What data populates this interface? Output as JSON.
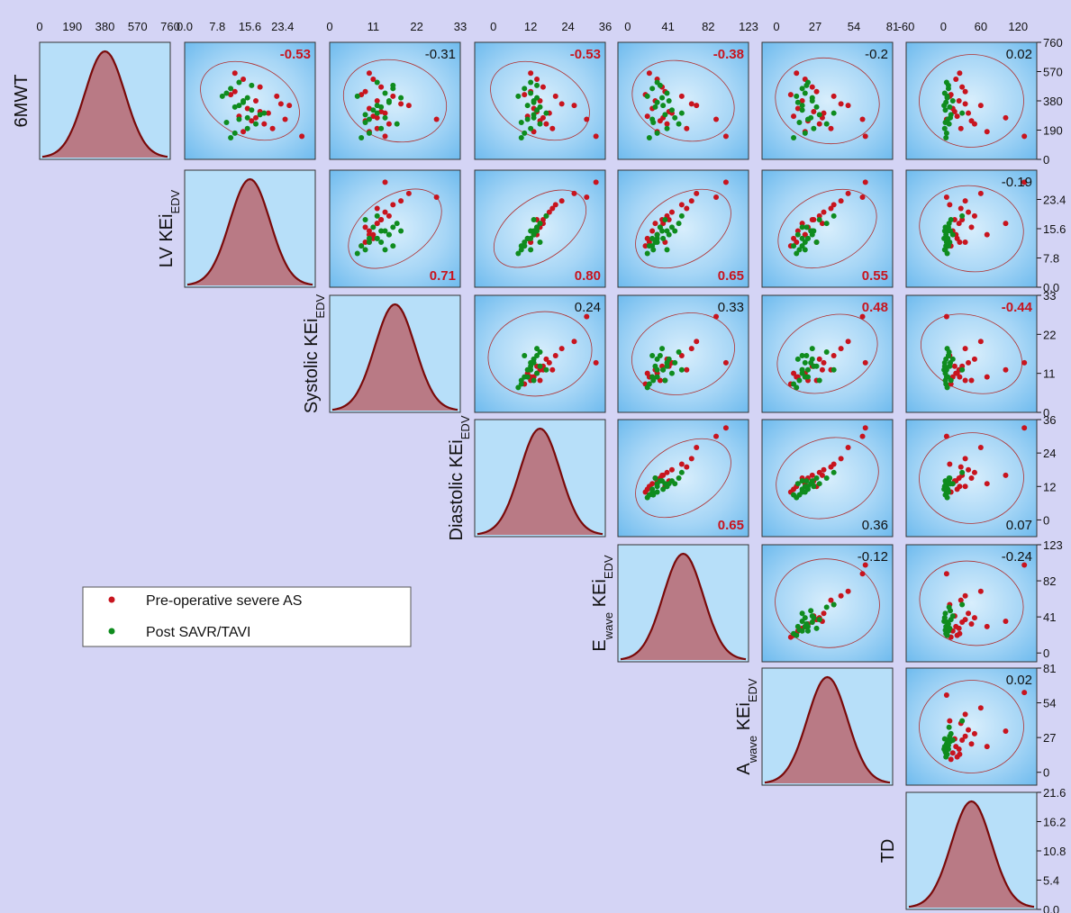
{
  "chart_data": {
    "type": "scatter",
    "title": "",
    "variables": [
      {
        "key": "6MWT",
        "label": "6MWT",
        "sub": "",
        "ticks": [
          "0",
          "190",
          "380",
          "570",
          "760"
        ],
        "range": [
          0,
          760
        ]
      },
      {
        "key": "LV",
        "label": "LV KEi",
        "sub": "EDV",
        "ticks": [
          "0.0",
          "7.8",
          "15.6",
          "23.4"
        ],
        "range": [
          0,
          31.2
        ]
      },
      {
        "key": "Systolic",
        "label": "Systolic KEi",
        "sub": "EDV",
        "ticks": [
          "0",
          "11",
          "22",
          "33"
        ],
        "range": [
          0,
          33
        ]
      },
      {
        "key": "Diastolic",
        "label": "Diastolic KEi",
        "sub": "EDV",
        "ticks": [
          "0",
          "12",
          "24",
          "36"
        ],
        "range": [
          -6,
          36
        ]
      },
      {
        "key": "Ewave",
        "label": "E",
        "sub": "wave",
        "label2": " KEi",
        "sub2": "EDV",
        "ticks": [
          "0",
          "41",
          "82",
          "123"
        ],
        "range": [
          -10,
          123
        ]
      },
      {
        "key": "Awave",
        "label": "A",
        "sub": "wave",
        "label2": " KEi",
        "sub2": "EDV",
        "ticks": [
          "0",
          "27",
          "54",
          "81"
        ],
        "range": [
          -10,
          81
        ]
      },
      {
        "key": "TD",
        "label": "TD",
        "sub": "",
        "ticks": [
          "-60",
          "0",
          "60",
          "120"
        ],
        "range": [
          -60,
          150
        ],
        "right_ticks": [
          "0.0",
          "5.4",
          "10.8",
          "16.2",
          "21.6"
        ],
        "right_range": [
          0,
          21.6
        ]
      }
    ],
    "correlations": [
      {
        "row": 0,
        "col": 1,
        "value": "-0.53",
        "highlight": true
      },
      {
        "row": 0,
        "col": 2,
        "value": "-0.31",
        "highlight": false
      },
      {
        "row": 0,
        "col": 3,
        "value": "-0.53",
        "highlight": true
      },
      {
        "row": 0,
        "col": 4,
        "value": "-0.38",
        "highlight": true
      },
      {
        "row": 0,
        "col": 5,
        "value": "-0.2",
        "highlight": false
      },
      {
        "row": 0,
        "col": 6,
        "value": "0.02",
        "highlight": false
      },
      {
        "row": 1,
        "col": 2,
        "value": "0.71",
        "highlight": true
      },
      {
        "row": 1,
        "col": 3,
        "value": "0.80",
        "highlight": true
      },
      {
        "row": 1,
        "col": 4,
        "value": "0.65",
        "highlight": true
      },
      {
        "row": 1,
        "col": 5,
        "value": "0.55",
        "highlight": true
      },
      {
        "row": 1,
        "col": 6,
        "value": "-0.19",
        "highlight": false
      },
      {
        "row": 2,
        "col": 3,
        "value": "0.24",
        "highlight": false
      },
      {
        "row": 2,
        "col": 4,
        "value": "0.33",
        "highlight": false
      },
      {
        "row": 2,
        "col": 5,
        "value": "0.48",
        "highlight": true
      },
      {
        "row": 2,
        "col": 6,
        "value": "-0.44",
        "highlight": true
      },
      {
        "row": 3,
        "col": 4,
        "value": "0.65",
        "highlight": true
      },
      {
        "row": 3,
        "col": 5,
        "value": "0.36",
        "highlight": false
      },
      {
        "row": 3,
        "col": 6,
        "value": "0.07",
        "highlight": false
      },
      {
        "row": 4,
        "col": 5,
        "value": "-0.12",
        "highlight": false
      },
      {
        "row": 4,
        "col": 6,
        "value": "-0.24",
        "highlight": false
      },
      {
        "row": 5,
        "col": 6,
        "value": "0.02",
        "highlight": false
      }
    ],
    "series": [
      {
        "name": "Pre-operative severe AS",
        "color": "#c8141e",
        "values": [
          [
            520,
            14,
            11,
            14,
            30,
            20,
            20
          ],
          [
            470,
            18,
            13,
            16,
            35,
            25,
            30
          ],
          [
            440,
            12,
            9,
            12,
            38,
            28,
            35
          ],
          [
            410,
            22,
            16,
            20,
            55,
            40,
            10
          ],
          [
            380,
            17,
            12,
            15,
            28,
            18,
            25
          ],
          [
            350,
            25,
            20,
            26,
            70,
            50,
            60
          ],
          [
            330,
            15,
            10,
            13,
            25,
            15,
            15
          ],
          [
            300,
            20,
            14,
            18,
            45,
            33,
            40
          ],
          [
            280,
            13,
            11,
            11,
            20,
            12,
            22
          ],
          [
            260,
            24,
            27,
            30,
            90,
            60,
            5
          ],
          [
            250,
            16,
            9,
            15,
            33,
            22,
            45
          ],
          [
            230,
            19,
            15,
            17,
            40,
            30,
            50
          ],
          [
            200,
            21,
            12,
            19,
            60,
            38,
            28
          ],
          [
            180,
            14,
            10,
            13,
            30,
            20,
            70
          ],
          [
            150,
            28,
            14,
            33,
            100,
            62,
            130
          ],
          [
            420,
            11,
            8,
            10,
            18,
            10,
            12
          ],
          [
            360,
            23,
            18,
            22,
            65,
            45,
            35
          ],
          [
            310,
            18,
            13,
            14,
            42,
            26,
            18
          ],
          [
            560,
            12,
            10,
            12,
            22,
            14,
            26
          ],
          [
            270,
            17,
            12,
            16,
            36,
            32,
            100
          ]
        ]
      },
      {
        "name": "Post SAVR/TAVI",
        "color": "#0f8c1e",
        "values": [
          [
            500,
            13,
            12,
            12,
            30,
            22,
            5
          ],
          [
            460,
            11,
            16,
            10,
            25,
            18,
            8
          ],
          [
            430,
            10,
            14,
            12,
            40,
            20,
            2
          ],
          [
            400,
            15,
            18,
            14,
            35,
            25,
            6
          ],
          [
            370,
            14,
            15,
            13,
            30,
            15,
            4
          ],
          [
            340,
            12,
            13,
            15,
            28,
            28,
            10
          ],
          [
            320,
            16,
            11,
            14,
            45,
            18,
            3
          ],
          [
            290,
            18,
            9,
            13,
            38,
            30,
            12
          ],
          [
            260,
            13,
            10,
            11,
            25,
            22,
            7
          ],
          [
            230,
            17,
            17,
            15,
            52,
            35,
            9
          ],
          [
            200,
            15,
            13,
            12,
            40,
            26,
            2
          ],
          [
            170,
            12,
            10,
            10,
            30,
            20,
            5
          ],
          [
            140,
            11,
            8,
            9,
            22,
            12,
            4
          ],
          [
            480,
            16,
            16,
            14,
            33,
            21,
            8
          ],
          [
            410,
            9,
            7,
            8,
            20,
            14,
            6
          ],
          [
            380,
            14,
            15,
            13,
            42,
            25,
            15
          ],
          [
            300,
            19,
            12,
            17,
            55,
            40,
            30
          ],
          [
            350,
            13,
            12,
            11,
            36,
            18,
            1
          ],
          [
            270,
            15,
            14,
            13,
            48,
            24,
            11
          ],
          [
            240,
            10,
            9,
            9,
            26,
            16,
            3
          ]
        ]
      }
    ],
    "legend_position": "center-left"
  }
}
